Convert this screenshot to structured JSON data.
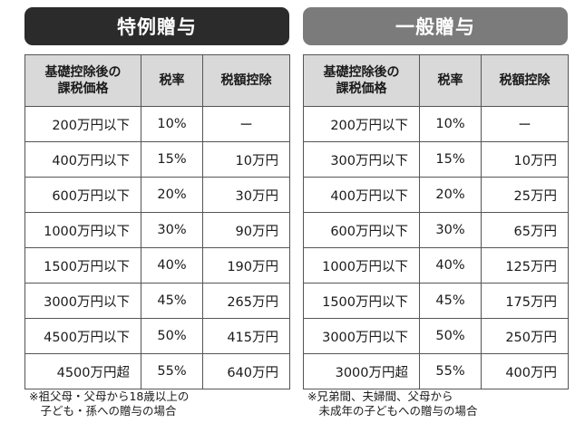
{
  "special": {
    "title": "特例贈与",
    "headers": [
      "基礎控除後の\n課税価格",
      "税率",
      "税額控除"
    ],
    "rows": [
      [
        "200万円以下",
        "10%",
        "ー"
      ],
      [
        "400万円以下",
        "15%",
        "10万円"
      ],
      [
        "600万円以下",
        "20%",
        "30万円"
      ],
      [
        "1000万円以下",
        "30%",
        "90万円"
      ],
      [
        "1500万円以下",
        "40%",
        "190万円"
      ],
      [
        "3000万円以下",
        "45%",
        "265万円"
      ],
      [
        "4500万円以下",
        "50%",
        "415万円"
      ],
      [
        "4500万円超",
        "55%",
        "640万円"
      ]
    ],
    "note_lines": [
      "※祖父母・父母から18歳以上の",
      "　子ども・孫への贈与の場合"
    ]
  },
  "general": {
    "title": "一般贈与",
    "headers": [
      "基礎控除後の\n課税価格",
      "税率",
      "税額控除"
    ],
    "rows": [
      [
        "200万円以下",
        "10%",
        "ー"
      ],
      [
        "300万円以下",
        "15%",
        "10万円"
      ],
      [
        "400万円以下",
        "20%",
        "25万円"
      ],
      [
        "600万円以下",
        "30%",
        "65万円"
      ],
      [
        "1000万円以下",
        "40%",
        "125万円"
      ],
      [
        "1500万円以下",
        "45%",
        "175万円"
      ],
      [
        "3000万円以下",
        "50%",
        "250万円"
      ],
      [
        "3000万円超",
        "55%",
        "400万円"
      ]
    ],
    "note_lines": [
      "※兄弟間、夫婦間、父母から",
      "　未成年の子どもへの贈与の場合"
    ]
  },
  "colors": {
    "special_banner": "#2b2b2b",
    "general_banner": "#7b7b7b",
    "header_fill": "#d9d9d9"
  }
}
